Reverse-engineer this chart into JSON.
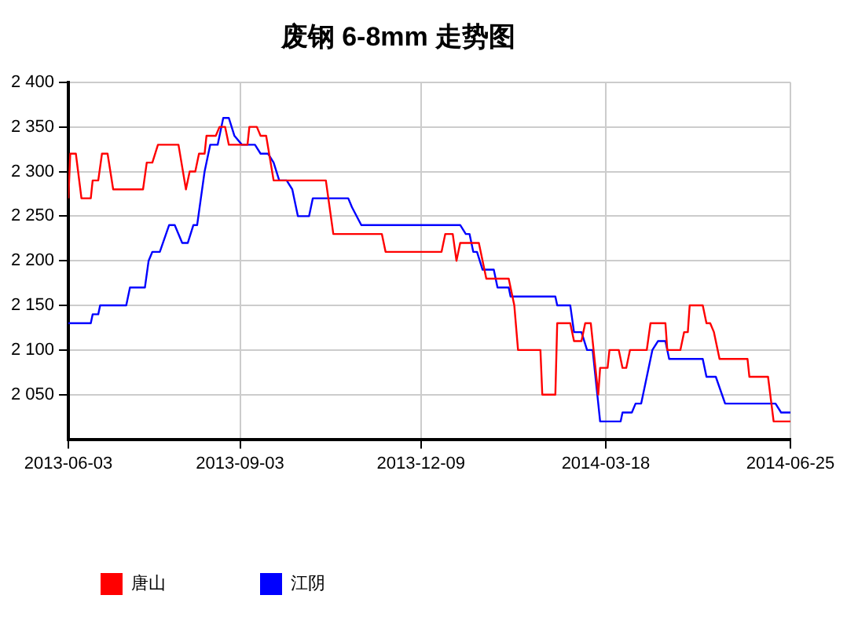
{
  "chart_data": {
    "type": "line",
    "title": "废钢 6-8mm 走势图",
    "xlim": [
      "2013-06-03",
      "2014-06-25"
    ],
    "xticks": [
      "2013-06-03",
      "2013-09-03",
      "2013-12-09",
      "2014-03-18",
      "2014-06-25"
    ],
    "ylim": [
      2000,
      2400
    ],
    "yticks": [
      {
        "value": 2050,
        "label": "2 050"
      },
      {
        "value": 2100,
        "label": "2 100"
      },
      {
        "value": 2150,
        "label": "2 150"
      },
      {
        "value": 2200,
        "label": "2 200"
      },
      {
        "value": 2250,
        "label": "2 250"
      },
      {
        "value": 2300,
        "label": "2 300"
      },
      {
        "value": 2350,
        "label": "2 350"
      },
      {
        "value": 2400,
        "label": "2 400"
      }
    ],
    "grid": true,
    "legend": "bottom left",
    "marker": "none",
    "line_style": "solid",
    "series": [
      {
        "name": "唐山",
        "color": "#ff0000",
        "x": [
          "2013-06-03",
          "2013-06-04",
          "2013-06-07",
          "2013-06-10",
          "2013-06-15",
          "2013-06-16",
          "2013-06-19",
          "2013-06-21",
          "2013-06-24",
          "2013-06-27",
          "2013-07-13",
          "2013-07-15",
          "2013-07-18",
          "2013-07-21",
          "2013-08-01",
          "2013-08-05",
          "2013-08-07",
          "2013-08-10",
          "2013-08-12",
          "2013-08-15",
          "2013-08-16",
          "2013-08-21",
          "2013-08-23",
          "2013-08-26",
          "2013-08-28",
          "2013-09-07",
          "2013-09-08",
          "2013-09-12",
          "2013-09-14",
          "2013-09-17",
          "2013-09-21",
          "2013-10-19",
          "2013-10-23",
          "2013-11-18",
          "2013-11-20",
          "2013-12-20",
          "2013-12-22",
          "2013-12-26",
          "2013-12-28",
          "2013-12-30",
          "2014-01-09",
          "2014-01-13",
          "2014-01-25",
          "2014-01-28",
          "2014-01-30",
          "2014-02-11",
          "2014-02-12",
          "2014-02-19",
          "2014-02-20",
          "2014-02-27",
          "2014-03-01",
          "2014-03-05",
          "2014-03-07",
          "2014-03-10",
          "2014-03-14",
          "2014-03-15",
          "2014-03-19",
          "2014-03-20",
          "2014-03-25",
          "2014-03-27",
          "2014-03-29",
          "2014-03-31",
          "2014-04-09",
          "2014-04-11",
          "2014-04-19",
          "2014-04-20",
          "2014-04-27",
          "2014-04-29",
          "2014-05-01",
          "2014-05-02",
          "2014-05-09",
          "2014-05-11",
          "2014-05-13",
          "2014-05-15",
          "2014-05-18",
          "2014-06-02",
          "2014-06-03",
          "2014-06-13",
          "2014-06-16",
          "2014-06-25"
        ],
        "values": [
          2270,
          2320,
          2320,
          2270,
          2270,
          2290,
          2290,
          2320,
          2320,
          2280,
          2280,
          2310,
          2310,
          2330,
          2330,
          2280,
          2300,
          2300,
          2320,
          2320,
          2340,
          2340,
          2350,
          2350,
          2330,
          2330,
          2350,
          2350,
          2340,
          2340,
          2290,
          2290,
          2230,
          2230,
          2210,
          2210,
          2230,
          2230,
          2200,
          2220,
          2220,
          2180,
          2180,
          2150,
          2100,
          2100,
          2050,
          2050,
          2130,
          2130,
          2110,
          2110,
          2130,
          2130,
          2050,
          2080,
          2080,
          2100,
          2100,
          2080,
          2080,
          2100,
          2100,
          2130,
          2130,
          2100,
          2100,
          2120,
          2120,
          2150,
          2150,
          2130,
          2130,
          2120,
          2090,
          2090,
          2070,
          2070,
          2020,
          2020
        ]
      },
      {
        "name": "江阴",
        "color": "#0000ff",
        "x": [
          "2013-06-03",
          "2013-06-15",
          "2013-06-16",
          "2013-06-19",
          "2013-06-20",
          "2013-07-04",
          "2013-07-06",
          "2013-07-14",
          "2013-07-16",
          "2013-07-18",
          "2013-07-22",
          "2013-07-27",
          "2013-07-30",
          "2013-08-03",
          "2013-08-06",
          "2013-08-09",
          "2013-08-11",
          "2013-08-15",
          "2013-08-18",
          "2013-08-22",
          "2013-08-25",
          "2013-08-28",
          "2013-08-31",
          "2013-09-04",
          "2013-09-11",
          "2013-09-14",
          "2013-09-18",
          "2013-09-21",
          "2013-09-24",
          "2013-09-28",
          "2013-10-01",
          "2013-10-04",
          "2013-10-10",
          "2013-10-12",
          "2013-10-31",
          "2013-11-02",
          "2013-11-07",
          "2013-12-30",
          "2014-01-02",
          "2014-01-04",
          "2014-01-06",
          "2014-01-08",
          "2014-01-11",
          "2014-01-17",
          "2014-01-19",
          "2014-01-25",
          "2014-01-26",
          "2014-02-19",
          "2014-02-20",
          "2014-02-27",
          "2014-03-01",
          "2014-03-05",
          "2014-03-08",
          "2014-03-11",
          "2014-03-15",
          "2014-03-26",
          "2014-03-27",
          "2014-04-01",
          "2014-04-03",
          "2014-04-06",
          "2014-04-12",
          "2014-04-15",
          "2014-04-19",
          "2014-04-21",
          "2014-05-09",
          "2014-05-11",
          "2014-05-16",
          "2014-05-21",
          "2014-06-17",
          "2014-06-20",
          "2014-06-25"
        ],
        "values": [
          2130,
          2130,
          2140,
          2140,
          2150,
          2150,
          2170,
          2170,
          2200,
          2210,
          2210,
          2240,
          2240,
          2220,
          2220,
          2240,
          2240,
          2300,
          2330,
          2330,
          2360,
          2360,
          2340,
          2330,
          2330,
          2320,
          2320,
          2310,
          2290,
          2290,
          2280,
          2250,
          2250,
          2270,
          2270,
          2260,
          2240,
          2240,
          2230,
          2230,
          2210,
          2210,
          2190,
          2190,
          2170,
          2170,
          2160,
          2160,
          2150,
          2150,
          2120,
          2120,
          2100,
          2100,
          2020,
          2020,
          2030,
          2030,
          2040,
          2040,
          2100,
          2110,
          2110,
          2090,
          2090,
          2070,
          2070,
          2040,
          2040,
          2030,
          2030
        ]
      }
    ]
  }
}
